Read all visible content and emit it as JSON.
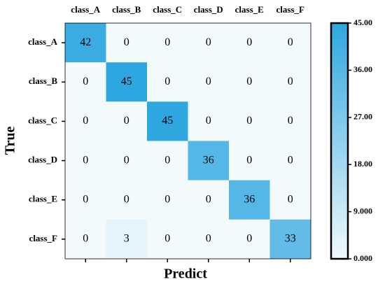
{
  "chart_data": {
    "type": "heatmap",
    "x_label": "Predict",
    "y_label": "True",
    "x_categories": [
      "class_A",
      "class_B",
      "class_C",
      "class_D",
      "class_E",
      "class_F"
    ],
    "y_categories": [
      "class_A",
      "class_B",
      "class_C",
      "class_D",
      "class_E",
      "class_F"
    ],
    "z": [
      [
        42,
        0,
        0,
        0,
        0,
        0
      ],
      [
        0,
        45,
        0,
        0,
        0,
        0
      ],
      [
        0,
        0,
        45,
        0,
        0,
        0
      ],
      [
        0,
        0,
        0,
        36,
        0,
        0
      ],
      [
        0,
        0,
        0,
        0,
        36,
        0
      ],
      [
        0,
        3,
        0,
        0,
        0,
        33
      ]
    ],
    "colormap": [
      "#f2fafc",
      "#2ea6e0"
    ],
    "clim": [
      0,
      45
    ],
    "cticks": [
      {
        "value": 0,
        "label": "0.000"
      },
      {
        "value": 9,
        "label": "9.000"
      },
      {
        "value": 18,
        "label": "18.00"
      },
      {
        "value": 27,
        "label": "27.00"
      },
      {
        "value": 36,
        "label": "36.00"
      },
      {
        "value": 45,
        "label": "45.00"
      }
    ]
  }
}
